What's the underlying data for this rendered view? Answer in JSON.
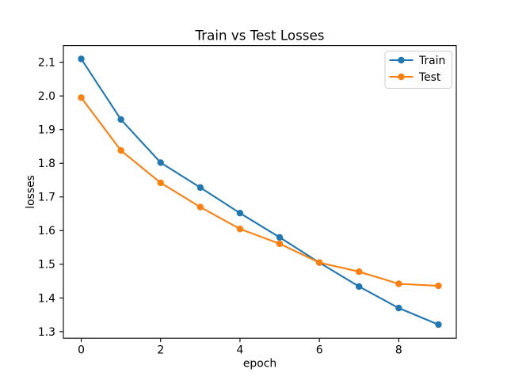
{
  "figure": {
    "background_color": "#ffffff",
    "title": "Train vs Test Losses"
  },
  "chart_data": {
    "type": "line",
    "title": "Train vs Test Losses",
    "xlabel": "epoch",
    "ylabel": "losses",
    "x": [
      0,
      1,
      2,
      3,
      4,
      5,
      6,
      7,
      8,
      9
    ],
    "series": [
      {
        "name": "Train",
        "color": "#1f77b4",
        "marker": "circle",
        "values": [
          2.11,
          1.93,
          1.802,
          1.728,
          1.652,
          1.58,
          1.505,
          1.434,
          1.37,
          1.321
        ]
      },
      {
        "name": "Test",
        "color": "#ff7f0e",
        "marker": "circle",
        "values": [
          1.995,
          1.838,
          1.742,
          1.67,
          1.605,
          1.561,
          1.505,
          1.478,
          1.442,
          1.436
        ]
      }
    ],
    "x_ticks": [
      0,
      2,
      4,
      6,
      8
    ],
    "y_ticks": [
      1.3,
      1.4,
      1.5,
      1.6,
      1.7,
      1.8,
      1.9,
      2.0,
      2.1
    ],
    "xlim": [
      -0.45,
      9.45
    ],
    "ylim": [
      1.2805,
      2.1495
    ],
    "grid": false,
    "legend_position": "upper right",
    "spine_color": "#000000",
    "legend_frame_color": "#cccccc"
  }
}
